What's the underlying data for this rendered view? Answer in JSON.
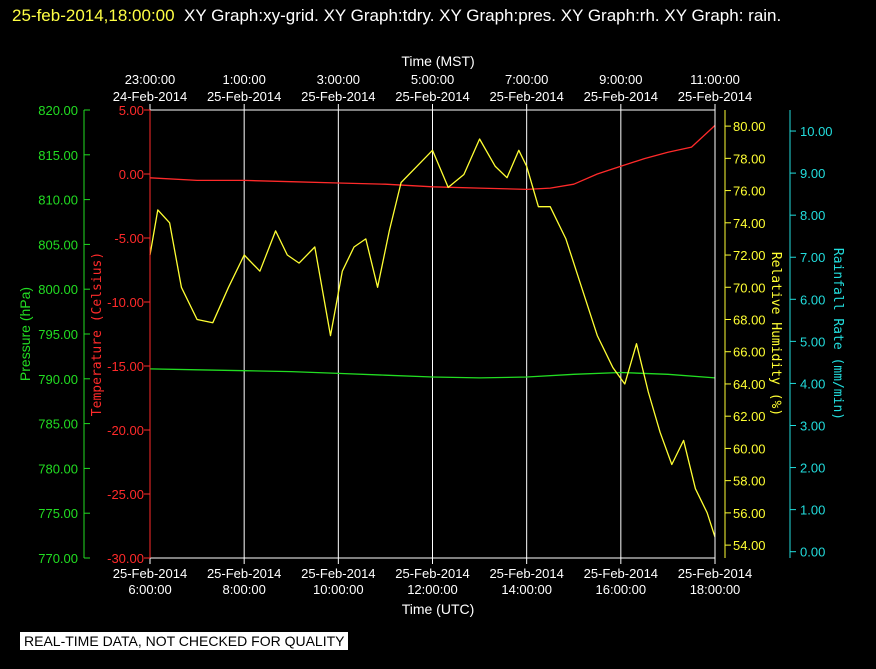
{
  "header": {
    "timestamp": "25-feb-2014,18:00:00",
    "title": "XY Graph:xy-grid.  XY Graph:tdry.  XY Graph:pres.  XY Graph:rh.  XY Graph: rain."
  },
  "footer": {
    "notice": "REAL-TIME DATA, NOT CHECKED FOR QUALITY"
  },
  "colors": {
    "background": "#000000",
    "grid": "#ffffff",
    "frame": "#ffffff",
    "temperature": "#ff2a2a",
    "pressure": "#22dd22",
    "humidity": "#ffff33",
    "rain": "#22dddd"
  },
  "chart_data": {
    "type": "line",
    "grid": true,
    "x_bottom": {
      "label": "Time (UTC)",
      "range": [
        "2014-02-25 06:00",
        "2014-02-25 18:00"
      ],
      "ticks": [
        [
          "25-Feb-2014",
          "6:00:00"
        ],
        [
          "25-Feb-2014",
          "8:00:00"
        ],
        [
          "25-Feb-2014",
          "10:00:00"
        ],
        [
          "25-Feb-2014",
          "12:00:00"
        ],
        [
          "25-Feb-2014",
          "14:00:00"
        ],
        [
          "25-Feb-2014",
          "16:00:00"
        ],
        [
          "25-Feb-2014",
          "18:00:00"
        ]
      ]
    },
    "x_top": {
      "label": "Time (MST)",
      "ticks": [
        [
          "23:00:00",
          "24-Feb-2014"
        ],
        [
          "1:00:00",
          "25-Feb-2014"
        ],
        [
          "3:00:00",
          "25-Feb-2014"
        ],
        [
          "5:00:00",
          "25-Feb-2014"
        ],
        [
          "7:00:00",
          "25-Feb-2014"
        ],
        [
          "9:00:00",
          "25-Feb-2014"
        ],
        [
          "11:00:00",
          "25-Feb-2014"
        ]
      ]
    },
    "axes": {
      "pressure": {
        "label": "Pressure (hPa)",
        "range": [
          770,
          820
        ],
        "ticks": [
          "820.00",
          "815.00",
          "810.00",
          "805.00",
          "800.00",
          "795.00",
          "790.00",
          "785.00",
          "780.00",
          "775.00",
          "770.00"
        ]
      },
      "temperature": {
        "label": "Temperature (Celsius)",
        "range": [
          -30,
          5
        ],
        "ticks": [
          "5.00",
          "0.00",
          "-5.00",
          "-10.00",
          "-15.00",
          "-20.00",
          "-25.00",
          "-30.00"
        ]
      },
      "humidity": {
        "label": "Relative Humidity (%)",
        "range": [
          53.2,
          81.0
        ],
        "ticks": [
          "80.00",
          "78.00",
          "76.00",
          "74.00",
          "72.00",
          "70.00",
          "68.00",
          "66.00",
          "64.00",
          "62.00",
          "60.00",
          "58.00",
          "56.00",
          "54.00"
        ]
      },
      "rain": {
        "label": "Rainfall Rate (mm/min)",
        "range": [
          -0.15,
          10.5
        ],
        "ticks": [
          "10.00",
          "9.00",
          "8.00",
          "7.00",
          "6.00",
          "5.00",
          "4.00",
          "3.00",
          "2.00",
          "1.00",
          "0.00"
        ]
      }
    },
    "series": [
      {
        "name": "tdry",
        "axis": "temperature",
        "x": [
          "2014-02-25 06:00",
          "2014-02-25 07:00",
          "2014-02-25 08:00",
          "2014-02-25 09:00",
          "2014-02-25 10:00",
          "2014-02-25 11:00",
          "2014-02-25 12:00",
          "2014-02-25 13:00",
          "2014-02-25 14:00",
          "2014-02-25 14:30",
          "2014-02-25 15:00",
          "2014-02-25 15:30",
          "2014-02-25 16:00",
          "2014-02-25 16:30",
          "2014-02-25 17:00",
          "2014-02-25 17:30",
          "2014-02-25 18:00"
        ],
        "y": [
          -0.3,
          -0.5,
          -0.5,
          -0.6,
          -0.7,
          -0.8,
          -1.0,
          -1.1,
          -1.2,
          -1.1,
          -0.8,
          0.0,
          0.6,
          1.2,
          1.7,
          2.1,
          3.8
        ]
      },
      {
        "name": "pres",
        "axis": "pressure",
        "x": [
          "2014-02-25 06:00",
          "2014-02-25 07:00",
          "2014-02-25 08:00",
          "2014-02-25 09:00",
          "2014-02-25 10:00",
          "2014-02-25 11:00",
          "2014-02-25 12:00",
          "2014-02-25 13:00",
          "2014-02-25 14:00",
          "2014-02-25 15:00",
          "2014-02-25 16:00",
          "2014-02-25 17:00",
          "2014-02-25 18:00"
        ],
        "y": [
          791.1,
          791.0,
          790.9,
          790.8,
          790.6,
          790.4,
          790.2,
          790.1,
          790.2,
          790.5,
          790.7,
          790.5,
          790.1
        ]
      },
      {
        "name": "rh",
        "axis": "humidity",
        "x": [
          "2014-02-25 06:00",
          "2014-02-25 06:10",
          "2014-02-25 06:25",
          "2014-02-25 06:40",
          "2014-02-25 07:00",
          "2014-02-25 07:20",
          "2014-02-25 07:40",
          "2014-02-25 08:00",
          "2014-02-25 08:20",
          "2014-02-25 08:40",
          "2014-02-25 08:55",
          "2014-02-25 09:10",
          "2014-02-25 09:30",
          "2014-02-25 09:50",
          "2014-02-25 10:05",
          "2014-02-25 10:20",
          "2014-02-25 10:35",
          "2014-02-25 10:50",
          "2014-02-25 11:05",
          "2014-02-25 11:20",
          "2014-02-25 11:40",
          "2014-02-25 12:00",
          "2014-02-25 12:20",
          "2014-02-25 12:40",
          "2014-02-25 13:00",
          "2014-02-25 13:20",
          "2014-02-25 13:35",
          "2014-02-25 13:50",
          "2014-02-25 14:00",
          "2014-02-25 14:15",
          "2014-02-25 14:30",
          "2014-02-25 14:50",
          "2014-02-25 15:10",
          "2014-02-25 15:30",
          "2014-02-25 15:50",
          "2014-02-25 16:05",
          "2014-02-25 16:20",
          "2014-02-25 16:35",
          "2014-02-25 16:50",
          "2014-02-25 17:05",
          "2014-02-25 17:20",
          "2014-02-25 17:35",
          "2014-02-25 17:50",
          "2014-02-25 18:00"
        ],
        "y": [
          72.0,
          74.8,
          74.0,
          70.0,
          68.0,
          67.8,
          70.0,
          72.0,
          71.0,
          73.5,
          72.0,
          71.5,
          72.5,
          67.0,
          71.0,
          72.5,
          73.0,
          70.0,
          73.5,
          76.5,
          77.5,
          78.5,
          76.2,
          77.0,
          79.2,
          77.5,
          76.8,
          78.5,
          77.5,
          75.0,
          75.0,
          73.0,
          70.0,
          67.0,
          65.0,
          64.0,
          66.5,
          63.5,
          61.0,
          59.0,
          60.5,
          57.5,
          56.0,
          54.5
        ]
      },
      {
        "name": "rain",
        "axis": "rain",
        "x": [],
        "y": []
      }
    ]
  }
}
